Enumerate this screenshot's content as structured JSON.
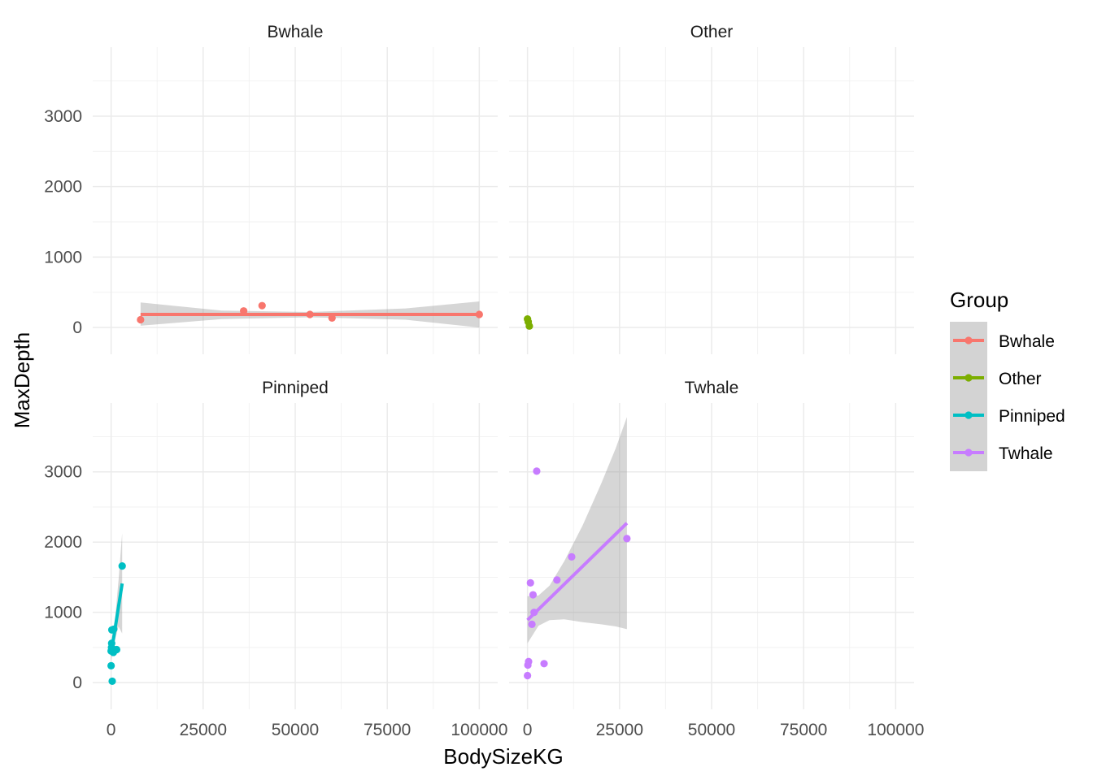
{
  "chart_data": {
    "type": "scatter",
    "xlabel": "BodySizeKG",
    "ylabel": "MaxDepth",
    "xlim": [
      -5000,
      105000
    ],
    "ylim": [
      -380,
      3980
    ],
    "x_ticks": [
      0,
      25000,
      50000,
      75000,
      100000
    ],
    "x_tick_labels": [
      "0",
      "25000",
      "50000",
      "75000",
      "100000"
    ],
    "y_ticks": [
      0,
      1000,
      2000,
      3000
    ],
    "y_tick_labels": [
      "0",
      "1000",
      "2000",
      "3000"
    ],
    "grid": true,
    "legend": {
      "title": "Group",
      "position": "right",
      "entries": [
        {
          "label": "Bwhale",
          "color": "#F8766D"
        },
        {
          "label": "Other",
          "color": "#7CAE00"
        },
        {
          "label": "Pinniped",
          "color": "#00BFC4"
        },
        {
          "label": "Twhale",
          "color": "#C77CFF"
        }
      ]
    },
    "facets": [
      {
        "title": "Bwhale",
        "color": "#F8766D",
        "points": [
          {
            "x": 8000,
            "y": 110
          },
          {
            "x": 36000,
            "y": 235
          },
          {
            "x": 41000,
            "y": 310
          },
          {
            "x": 54000,
            "y": 185
          },
          {
            "x": 60000,
            "y": 135
          },
          {
            "x": 100000,
            "y": 185
          }
        ],
        "fit_line": [
          {
            "x": 8000,
            "y": 185
          },
          {
            "x": 100000,
            "y": 185
          }
        ],
        "ci_band": {
          "x": [
            8000,
            30000,
            54000,
            80000,
            100000
          ],
          "lower": [
            25,
            120,
            145,
            110,
            0
          ],
          "upper": [
            355,
            240,
            220,
            270,
            370
          ]
        }
      },
      {
        "title": "Other",
        "color": "#7CAE00",
        "points": [
          {
            "x": 0,
            "y": 120
          },
          {
            "x": 200,
            "y": 80
          },
          {
            "x": 500,
            "y": 20
          }
        ],
        "fit_line": [
          {
            "x": 0,
            "y": 115
          },
          {
            "x": 500,
            "y": 25
          }
        ],
        "ci_band": {
          "x": [
            0,
            500
          ],
          "lower": [
            80,
            0
          ],
          "upper": [
            150,
            50
          ]
        }
      },
      {
        "title": "Pinniped",
        "color": "#00BFC4",
        "points": [
          {
            "x": 0,
            "y": 450
          },
          {
            "x": 0,
            "y": 240
          },
          {
            "x": 100,
            "y": 500
          },
          {
            "x": 150,
            "y": 560
          },
          {
            "x": 200,
            "y": 750
          },
          {
            "x": 300,
            "y": 20
          },
          {
            "x": 400,
            "y": 480
          },
          {
            "x": 600,
            "y": 430
          },
          {
            "x": 700,
            "y": 760
          },
          {
            "x": 1500,
            "y": 470
          },
          {
            "x": 3000,
            "y": 1660
          }
        ],
        "fit_line": [
          {
            "x": 0,
            "y": 410
          },
          {
            "x": 3000,
            "y": 1410
          }
        ],
        "ci_band": {
          "x": [
            0,
            500,
            1000,
            2000,
            3000
          ],
          "lower": [
            300,
            480,
            600,
            800,
            700
          ],
          "upper": [
            520,
            620,
            860,
            1450,
            2130
          ]
        }
      },
      {
        "title": "Twhale",
        "color": "#C77CFF",
        "points": [
          {
            "x": 0,
            "y": 100
          },
          {
            "x": 100,
            "y": 250
          },
          {
            "x": 300,
            "y": 300
          },
          {
            "x": 800,
            "y": 1420
          },
          {
            "x": 1200,
            "y": 830
          },
          {
            "x": 1500,
            "y": 1250
          },
          {
            "x": 1800,
            "y": 1000
          },
          {
            "x": 2500,
            "y": 3010
          },
          {
            "x": 4500,
            "y": 270
          },
          {
            "x": 8000,
            "y": 1460
          },
          {
            "x": 12000,
            "y": 1790
          },
          {
            "x": 27000,
            "y": 2050
          }
        ],
        "fit_line": [
          {
            "x": 0,
            "y": 890
          },
          {
            "x": 27000,
            "y": 2270
          }
        ],
        "ci_band": {
          "x": [
            0,
            3000,
            6000,
            10000,
            15000,
            20000,
            24000,
            27000
          ],
          "lower": [
            560,
            810,
            890,
            900,
            860,
            830,
            800,
            760
          ],
          "upper": [
            1230,
            1240,
            1380,
            1730,
            2240,
            2830,
            3340,
            3780
          ]
        }
      }
    ]
  }
}
